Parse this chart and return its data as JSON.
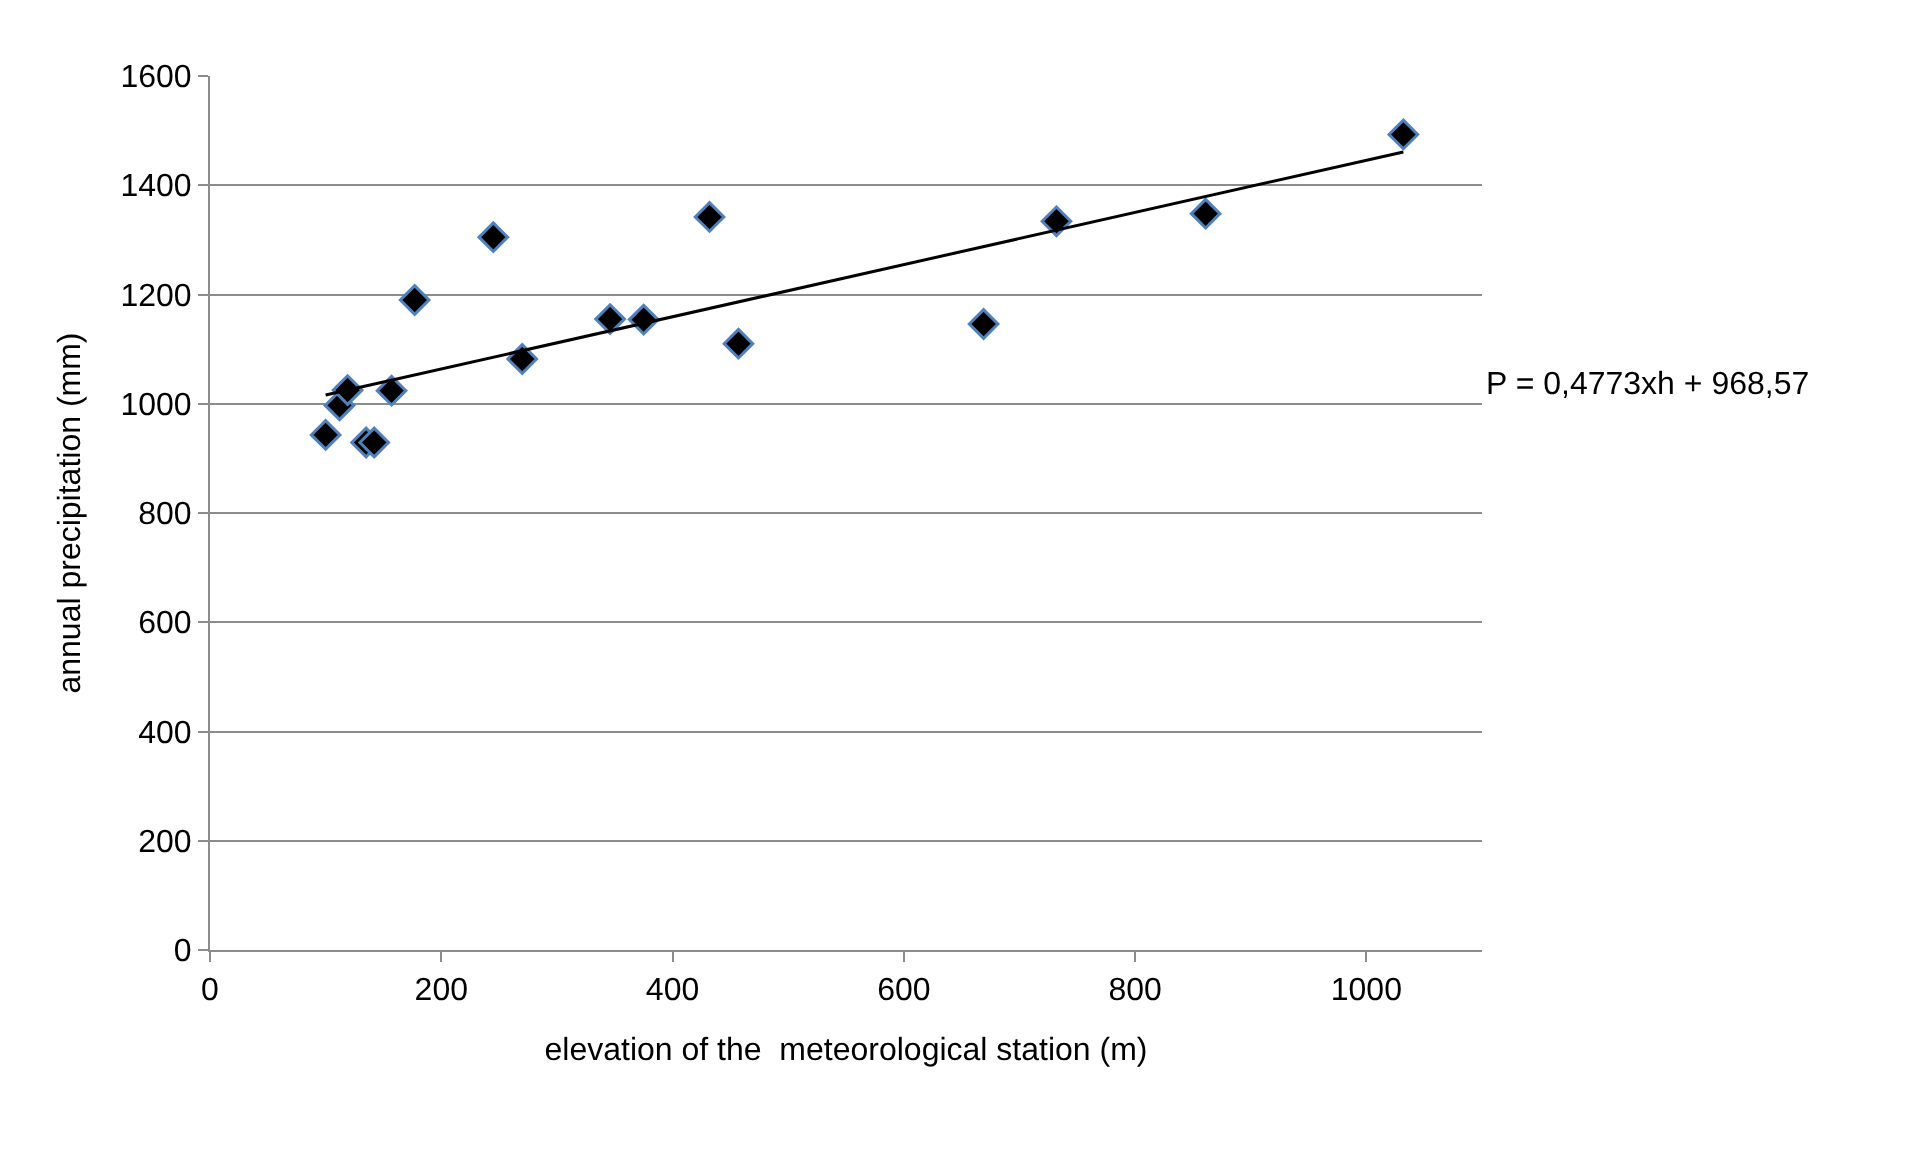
{
  "chart_data": {
    "type": "scatter",
    "xlabel": "elevation of the  meteorological station (m)",
    "ylabel": "annual precipitation (mm)",
    "xlim": [
      0,
      1100
    ],
    "xticks": [
      0,
      200,
      400,
      600,
      800,
      1000
    ],
    "ylim": [
      0,
      1600
    ],
    "yticks": [
      0,
      200,
      400,
      600,
      800,
      1000,
      1200,
      1400,
      1600
    ],
    "grid": "y",
    "series": [
      {
        "marker": "diamond",
        "color": "#000000",
        "x": [
          100,
          112,
          119,
          135,
          142,
          157,
          177,
          245,
          270,
          346,
          375,
          432,
          457,
          669,
          732,
          861,
          1032
        ],
        "values": [
          943,
          997,
          1025,
          929,
          929,
          1024,
          1190,
          1305,
          1082,
          1155,
          1154,
          1342,
          1110,
          1146,
          1334,
          1348,
          1493
        ]
      },
      {
        "type": "line",
        "color": "#000000",
        "x": [
          100,
          1032
        ],
        "values": [
          1016,
          1461
        ]
      }
    ],
    "annotations": [
      "P = 0,4773xh + 968,57"
    ]
  }
}
